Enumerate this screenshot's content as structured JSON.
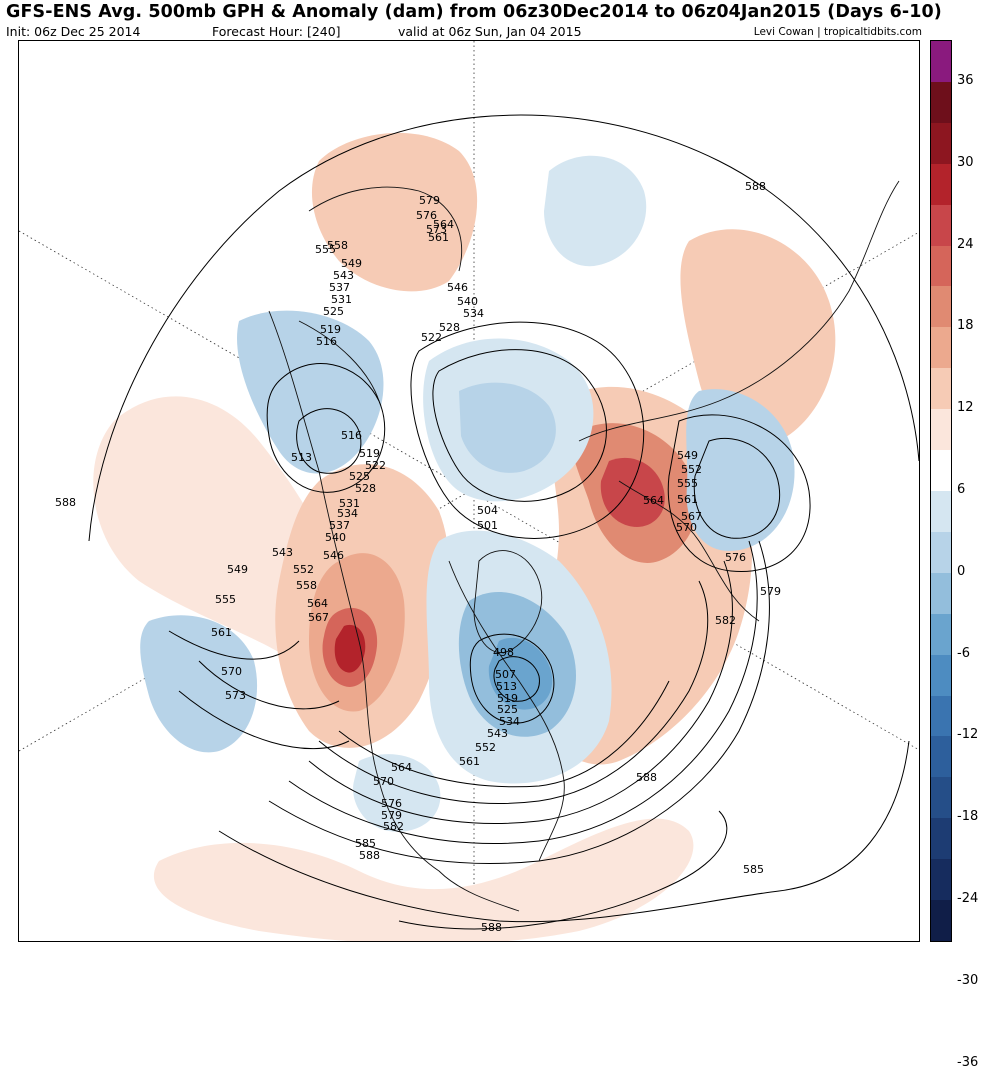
{
  "header": {
    "title": "GFS-ENS Avg. 500mb GPH & Anomaly (dam) from 06z30Dec2014 to 06z04Jan2015 (Days 6-10)",
    "init": "Init: 06z Dec 25 2014",
    "forecast_hour": "Forecast Hour: [240]",
    "valid": "valid at 06z Sun, Jan 04 2015",
    "credit": "Levi Cowan | tropicaltidbits.com"
  },
  "colorbar": {
    "labels": [
      "36",
      "30",
      "24",
      "18",
      "12",
      "6",
      "0",
      "-6",
      "-12",
      "-18",
      "-24",
      "-30",
      "-36"
    ],
    "colors": [
      "#8a1a7e",
      "#6e0f1b",
      "#8d1620",
      "#b3232b",
      "#c8464a",
      "#d5655a",
      "#e08a72",
      "#eca98e",
      "#f6cbb5",
      "#fbe6dc",
      "#ffffff",
      "#d5e6f1",
      "#b7d3e8",
      "#93bedc",
      "#6aa4ce",
      "#4d8cc1",
      "#3a74b0",
      "#2d5f9c",
      "#254e88",
      "#1d3c73",
      "#162c5e",
      "#101e48"
    ]
  },
  "contour_labels": [
    "579",
    "576",
    "573",
    "564",
    "561",
    "558",
    "555",
    "549",
    "543",
    "537",
    "531",
    "525",
    "519",
    "516",
    "546",
    "540",
    "534",
    "528",
    "522",
    "513",
    "516",
    "519",
    "522",
    "525",
    "528",
    "531",
    "534",
    "537",
    "540",
    "543",
    "546",
    "549",
    "552",
    "558",
    "564",
    "567",
    "555",
    "561",
    "570",
    "573",
    "504",
    "501",
    "498",
    "507",
    "513",
    "519",
    "525",
    "534",
    "543",
    "552",
    "561",
    "564",
    "570",
    "576",
    "579",
    "582",
    "585",
    "588",
    "588",
    "582",
    "579",
    "576",
    "570",
    "567",
    "561",
    "555",
    "552",
    "549",
    "564",
    "588",
    "588",
    "585",
    "588"
  ]
}
